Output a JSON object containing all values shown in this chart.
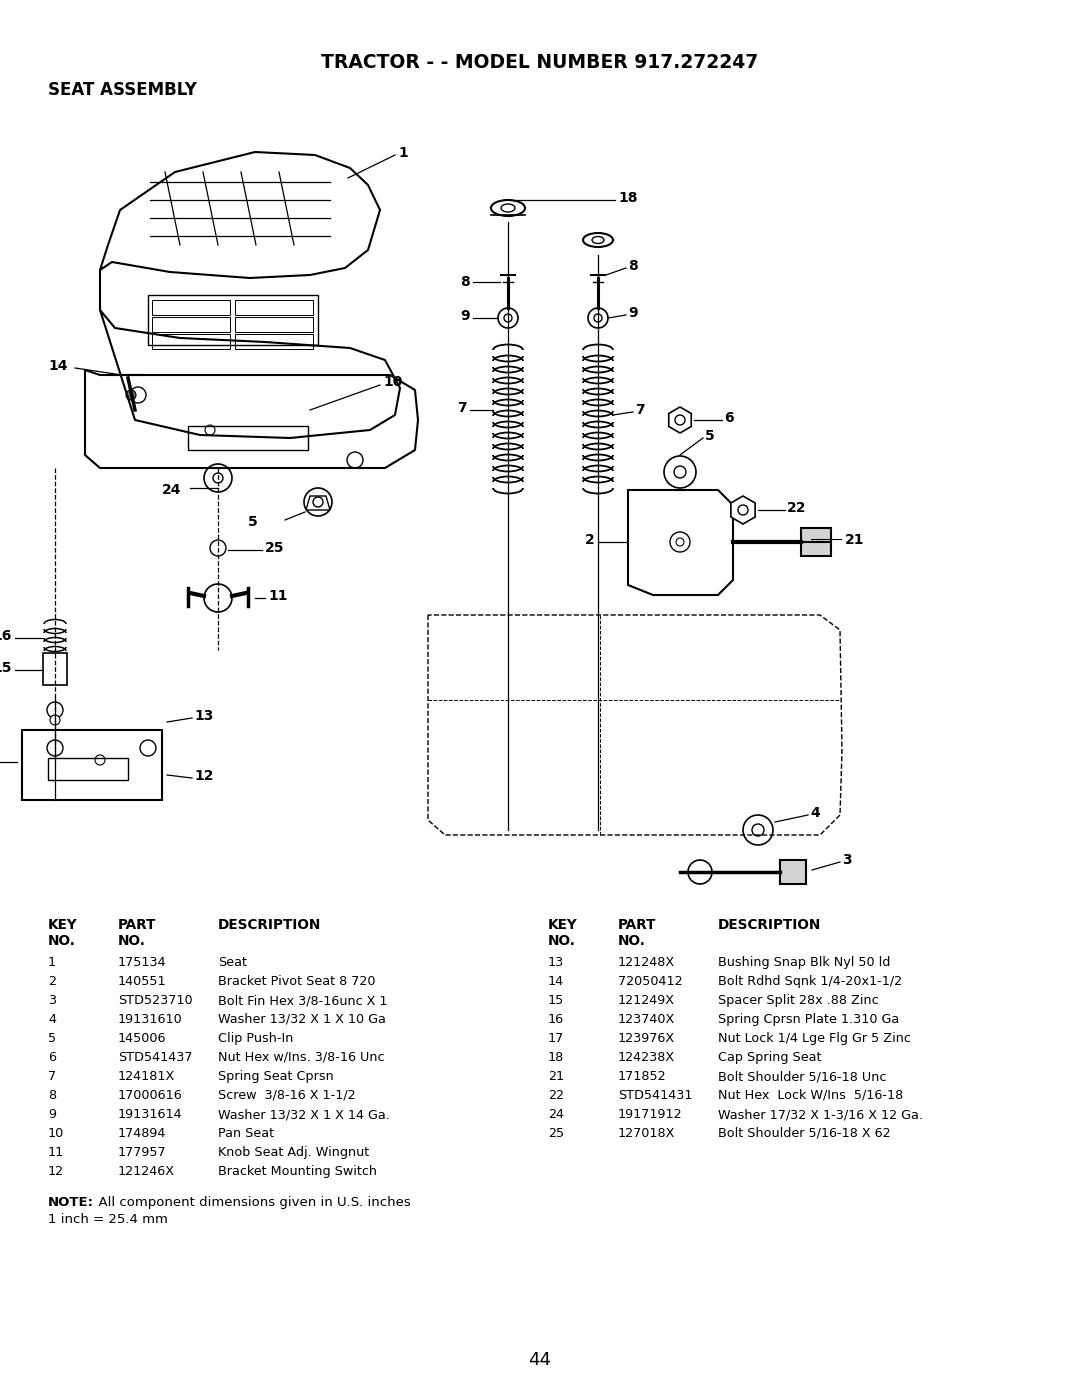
{
  "title": "TRACTOR - - MODEL NUMBER 917.272247",
  "subtitle": "SEAT ASSEMBLY",
  "page_number": "44",
  "background_color": "#ffffff",
  "text_color": "#000000",
  "left_table_headers": [
    "KEY",
    "PART",
    "DESCRIPTION"
  ],
  "left_table_subheaders": [
    "NO.",
    "NO.",
    ""
  ],
  "left_table_rows": [
    [
      "1",
      "175134",
      "Seat"
    ],
    [
      "2",
      "140551",
      "Bracket Pivot Seat 8 720"
    ],
    [
      "3",
      "STD523710",
      "Bolt Fin Hex 3/8-16unc X 1"
    ],
    [
      "4",
      "19131610",
      "Washer 13/32 X 1 X 10 Ga"
    ],
    [
      "5",
      "145006",
      "Clip Push-In"
    ],
    [
      "6",
      "STD541437",
      "Nut Hex w/Ins. 3/8-16 Unc"
    ],
    [
      "7",
      "124181X",
      "Spring Seat Cprsn"
    ],
    [
      "8",
      "17000616",
      "Screw  3/8-16 X 1-1/2"
    ],
    [
      "9",
      "19131614",
      "Washer 13/32 X 1 X 14 Ga."
    ],
    [
      "10",
      "174894",
      "Pan Seat"
    ],
    [
      "11",
      "177957",
      "Knob Seat Adj. Wingnut"
    ],
    [
      "12",
      "121246X",
      "Bracket Mounting Switch"
    ]
  ],
  "right_table_headers": [
    "KEY",
    "PART",
    "DESCRIPTION"
  ],
  "right_table_subheaders": [
    "NO.",
    "NO.",
    ""
  ],
  "right_table_rows": [
    [
      "13",
      "121248X",
      "Bushing Snap Blk Nyl 50 ld"
    ],
    [
      "14",
      "72050412",
      "Bolt Rdhd Sqnk 1/4-20x1-1/2"
    ],
    [
      "15",
      "121249X",
      "Spacer Split 28x .88 Zinc"
    ],
    [
      "16",
      "123740X",
      "Spring Cprsn Plate 1.310 Ga"
    ],
    [
      "17",
      "123976X",
      "Nut Lock 1/4 Lge Flg Gr 5 Zinc"
    ],
    [
      "18",
      "124238X",
      "Cap Spring Seat"
    ],
    [
      "21",
      "171852",
      "Bolt Shoulder 5/16-18 Unc"
    ],
    [
      "22",
      "STD541431",
      "Nut Hex  Lock W/Ins  5/16-18"
    ],
    [
      "24",
      "19171912",
      "Washer 17/32 X 1-3/16 X 12 Ga."
    ],
    [
      "25",
      "127018X",
      "Bolt Shoulder 5/16-18 X 62"
    ]
  ],
  "note_bold": "NOTE:",
  "note_rest": "  All component dimensions given in U.S. inches",
  "note_line2": "1 inch = 25.4 mm"
}
